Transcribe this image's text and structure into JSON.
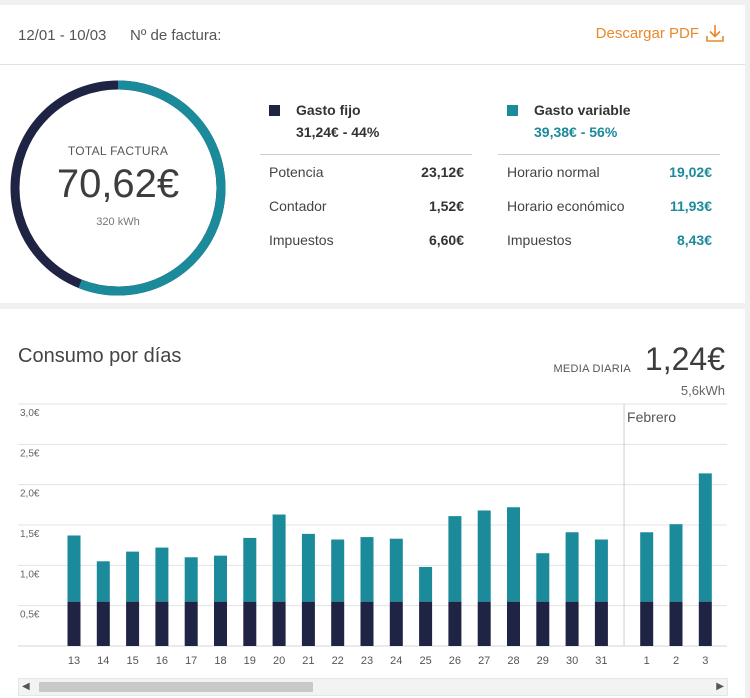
{
  "invoice": {
    "period": "12/01 - 10/03",
    "number_label": "Nº de factura:",
    "download_label": "Descargar PDF"
  },
  "total": {
    "label": "TOTAL FACTURA",
    "value": "70,62€",
    "kwh": "320 kWh",
    "fixed_share": 0.44,
    "variable_share": 0.56
  },
  "fixed": {
    "title": "Gasto fijo",
    "summary": "31,24€ - 44%",
    "color": "#1f2344",
    "items": [
      {
        "label": "Potencia",
        "value": "23,12€"
      },
      {
        "label": "Contador",
        "value": "1,52€"
      },
      {
        "label": "Impuestos",
        "value": "6,60€"
      }
    ]
  },
  "variable": {
    "title": "Gasto variable",
    "summary": "39,38€ - 56%",
    "color": "#1b8a9a",
    "items": [
      {
        "label": "Horario normal",
        "value": "19,02€"
      },
      {
        "label": "Horario económico",
        "value": "11,93€"
      },
      {
        "label": "Impuestos",
        "value": "8,43€"
      }
    ]
  },
  "consumption": {
    "title": "Consumo por días",
    "media_label": "MEDIA DIARIA",
    "media_value": "1,24€",
    "media_kwh": "5,6kWh",
    "scroll_left": "◀",
    "scroll_right": "▶"
  },
  "chart_data": {
    "type": "bar",
    "stacked": true,
    "categories": [
      "13",
      "14",
      "15",
      "16",
      "17",
      "18",
      "19",
      "20",
      "21",
      "22",
      "23",
      "24",
      "25",
      "26",
      "27",
      "28",
      "29",
      "30",
      "31",
      "1",
      "2",
      "3"
    ],
    "y_ticks": [
      "3,0€",
      "2,5€",
      "2,0€",
      "1,5€",
      "1,0€",
      "0,5€"
    ],
    "ylim": [
      0,
      3.0
    ],
    "grid": true,
    "annotation": "Febrero",
    "annotation_before_index": 19,
    "series": [
      {
        "color": "#1f2344",
        "values": [
          0.55,
          0.55,
          0.55,
          0.55,
          0.55,
          0.55,
          0.55,
          0.55,
          0.55,
          0.55,
          0.55,
          0.55,
          0.55,
          0.55,
          0.55,
          0.55,
          0.55,
          0.55,
          0.55,
          0.55,
          0.55,
          0.55
        ]
      },
      {
        "color": "#1b8a9a",
        "values": [
          0.82,
          0.5,
          0.62,
          0.67,
          0.55,
          0.57,
          0.79,
          1.08,
          0.84,
          0.77,
          0.8,
          0.78,
          0.43,
          1.06,
          1.13,
          1.17,
          0.6,
          0.86,
          0.77,
          0.86,
          0.96,
          1.59
        ]
      }
    ]
  }
}
